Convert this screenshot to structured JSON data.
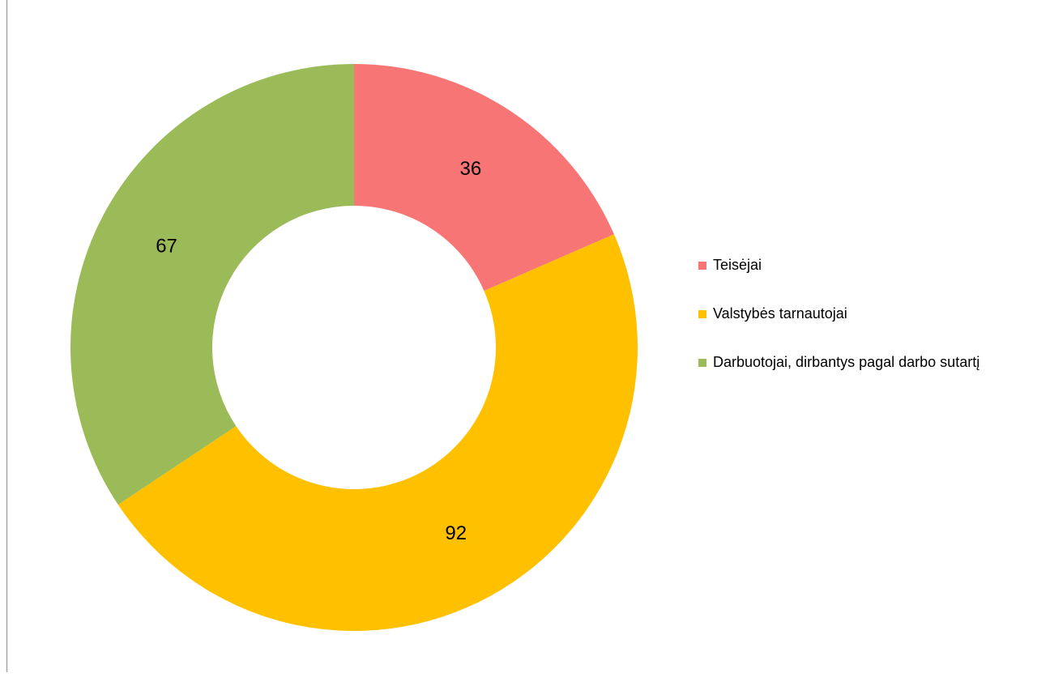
{
  "chart_data": {
    "type": "donut",
    "categories": [
      "Teisėjai",
      "Valstybės tarnautojai",
      "Darbuotojai, dirbantys pagal darbo sutartį"
    ],
    "values": [
      36,
      92,
      67
    ],
    "colors": [
      "#f87575",
      "#ffc000",
      "#9bbb59"
    ],
    "legend": "right"
  }
}
